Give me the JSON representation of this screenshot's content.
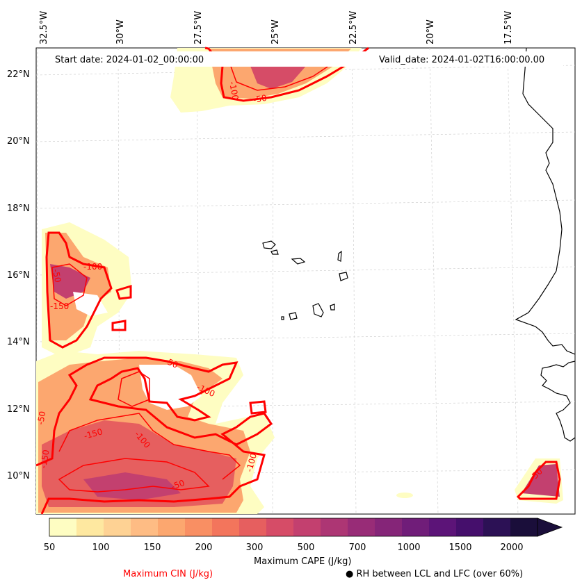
{
  "header": {
    "start_date": "Start date: 2024-01-02_00:00:00",
    "valid_date": "Valid_date: 2024-01-02T16:00:00.00"
  },
  "axes": {
    "lon_labels": [
      "32.5°W",
      "30°W",
      "27.5°W",
      "25°W",
      "22.5°W",
      "20°W",
      "17.5°W"
    ],
    "lat_labels": [
      "22°N",
      "20°N",
      "18°N",
      "16°N",
      "14°N",
      "12°N",
      "10°N"
    ]
  },
  "colorbar": {
    "title": "Maximum CAPE (J/kg)",
    "ticks": [
      "50",
      "100",
      "150",
      "200",
      "300",
      "500",
      "700",
      "1000",
      "1500",
      "2000"
    ],
    "colors": [
      "#fefdc2",
      "#fee8a0",
      "#fed294",
      "#febc84",
      "#fca76f",
      "#f98f63",
      "#f3755c",
      "#e65f5f",
      "#d64c67",
      "#c3406f",
      "#ad3674",
      "#982c77",
      "#852578",
      "#701d79",
      "#5c1478",
      "#450f6c",
      "#2c1155",
      "#1a0e3a"
    ]
  },
  "legend": {
    "cin_label": "Maximum CIN (J/kg)",
    "rh_label": "RH between LCL and LFC (over 60%)",
    "cin_color": "#ff0000"
  },
  "contour_labels": [
    "-50",
    "-100",
    "-100",
    "-150",
    "-150",
    "-50",
    "-100",
    "-150",
    "-100",
    "-50",
    "-100",
    "-50",
    "-50",
    "-50"
  ]
}
